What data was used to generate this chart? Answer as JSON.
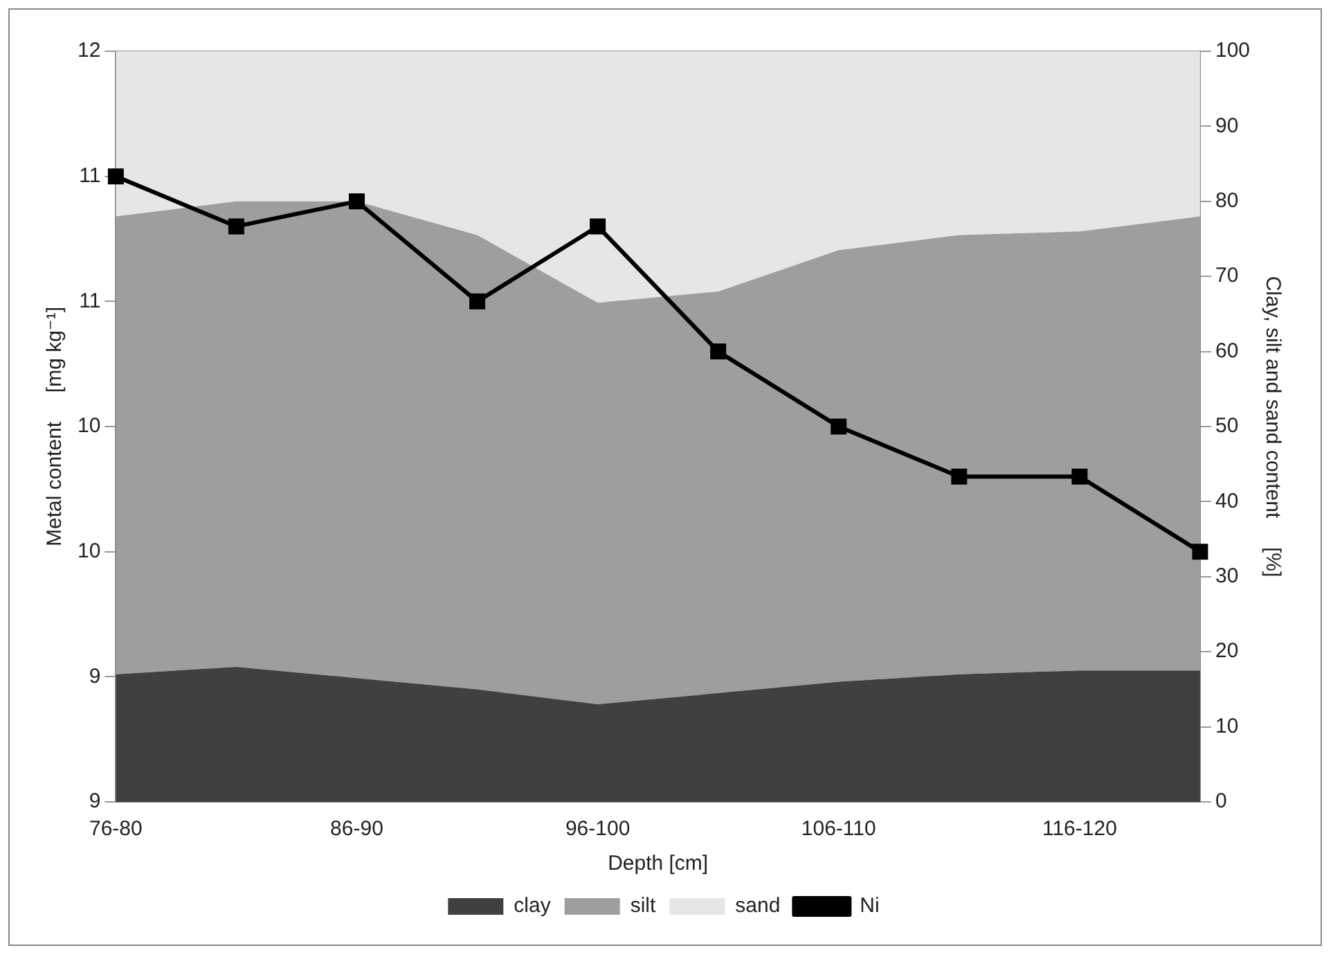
{
  "chart_data": {
    "type": "area",
    "xlabel": "Depth [cm]",
    "ylabel": "Metal content     [mg kg⁻¹]",
    "y2label": "Clay, silt and sand content     [%]",
    "categories": [
      "76-80",
      null,
      "86-90",
      null,
      "96-100",
      null,
      "106-110",
      null,
      "116-120",
      null
    ],
    "stacked": true,
    "series": [
      {
        "name": "clay",
        "axis": "y2",
        "color": "#404040",
        "values": [
          17,
          18,
          16.5,
          15,
          13,
          14.5,
          16,
          17,
          17.5,
          17.5
        ]
      },
      {
        "name": "silt",
        "axis": "y2",
        "color": "#9e9e9e",
        "values": [
          61,
          62,
          63.5,
          60.5,
          53.5,
          53.5,
          57.5,
          58.5,
          58.5,
          60.5
        ]
      },
      {
        "name": "sand",
        "axis": "y2",
        "color": "#e6e6e6",
        "values": [
          22,
          20,
          20,
          24.5,
          33.5,
          32,
          26.5,
          24.5,
          24,
          22
        ]
      },
      {
        "name": "Ni",
        "type": "line",
        "axis": "y",
        "color": "#000000",
        "marker": "square",
        "line_style": "solid",
        "values": [
          11.5,
          11.3,
          11.4,
          11.0,
          11.3,
          10.8,
          10.5,
          10.3,
          10.3,
          10.0
        ]
      }
    ],
    "ylim": [
      9,
      12
    ],
    "yticks": [
      {
        "value": 12,
        "label": "12"
      },
      {
        "value": 11.5,
        "label": "11"
      },
      {
        "value": 11,
        "label": "11"
      },
      {
        "value": 10.5,
        "label": "10"
      },
      {
        "value": 10,
        "label": "10"
      },
      {
        "value": 9.5,
        "label": "9"
      },
      {
        "value": 9,
        "label": "9"
      }
    ],
    "y2lim": [
      0,
      100
    ],
    "y2ticks": [
      0,
      10,
      20,
      30,
      40,
      50,
      60,
      70,
      80,
      90,
      100
    ],
    "grid": "y",
    "legend": "bottom"
  }
}
